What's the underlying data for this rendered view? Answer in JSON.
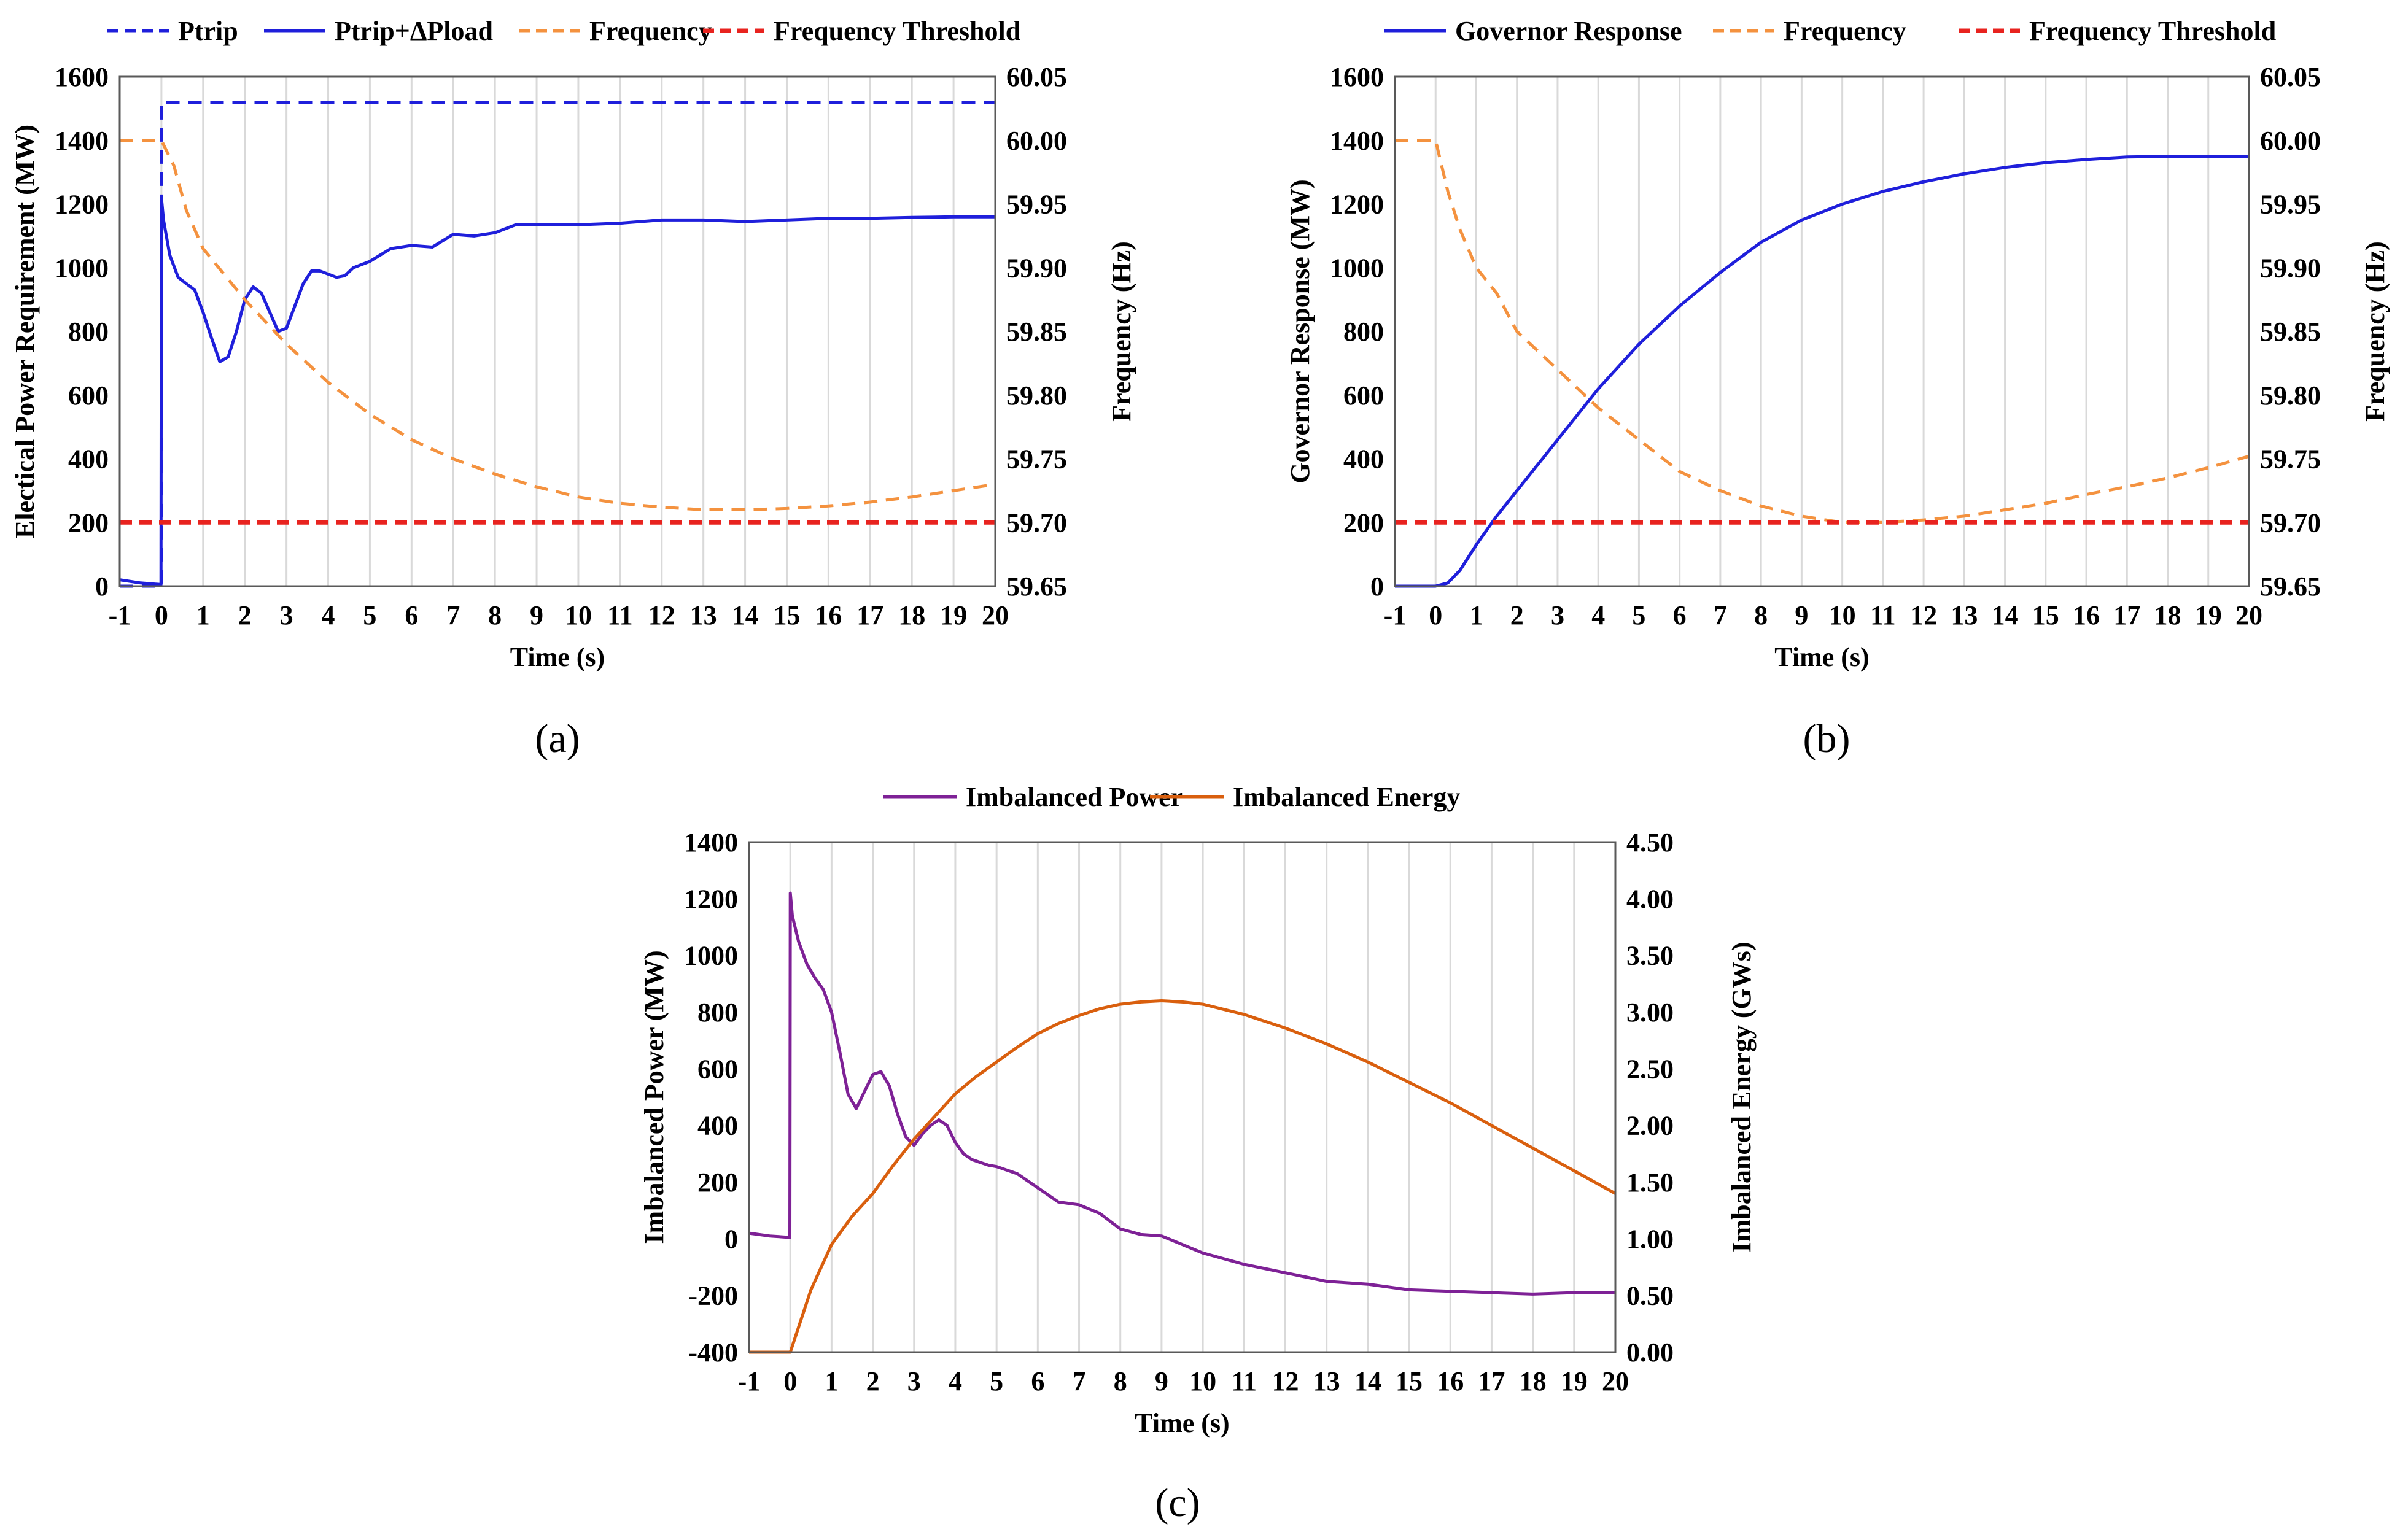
{
  "chart_data": [
    {
      "id": "a",
      "type": "line",
      "panel_label": "(a)",
      "xlabel": "Time (s)",
      "ylabel": "Electical Power Requirement (MW)",
      "y2label": "Frequency (Hz)",
      "xlim": [
        -1,
        20
      ],
      "ylim": [
        0,
        1600
      ],
      "y2lim": [
        59.65,
        60.05
      ],
      "x_ticks": [
        "-1",
        "0",
        "1",
        "2",
        "3",
        "4",
        "5",
        "6",
        "7",
        "8",
        "9",
        "10",
        "11",
        "12",
        "13",
        "14",
        "15",
        "16",
        "17",
        "18",
        "19",
        "20"
      ],
      "y_ticks": [
        "0",
        "200",
        "400",
        "600",
        "800",
        "1000",
        "1200",
        "1400",
        "1600"
      ],
      "y2_ticks": [
        "59.65",
        "59.70",
        "59.75",
        "59.80",
        "59.85",
        "59.90",
        "59.95",
        "60.00",
        "60.05"
      ],
      "grid": "vertical",
      "legend_position": "top",
      "series": [
        {
          "name": "Ptrip",
          "axis": "left",
          "color": "#1f1fdb",
          "dash": "dashed",
          "x": [
            -1,
            0,
            0,
            20
          ],
          "y": [
            0,
            0,
            1520,
            1520
          ]
        },
        {
          "name": "Ptrip+ΔPload",
          "axis": "left",
          "color": "#1f1fdb",
          "dash": "solid",
          "x": [
            -1,
            -0.5,
            -0.01,
            0.0,
            0.05,
            0.2,
            0.4,
            0.6,
            0.8,
            1.0,
            1.2,
            1.4,
            1.6,
            1.8,
            2.0,
            2.2,
            2.4,
            2.6,
            2.8,
            3.0,
            3.2,
            3.4,
            3.6,
            3.8,
            4.0,
            4.2,
            4.4,
            4.6,
            4.8,
            5.0,
            5.5,
            6.0,
            6.5,
            7.0,
            7.5,
            8.0,
            8.5,
            9.0,
            10.0,
            11.0,
            12.0,
            13.0,
            14.0,
            15.0,
            16.0,
            17.0,
            18.0,
            19.0,
            20.0
          ],
          "y": [
            20,
            10,
            5,
            1220,
            1150,
            1040,
            970,
            950,
            930,
            860,
            780,
            705,
            720,
            800,
            900,
            940,
            920,
            860,
            800,
            810,
            880,
            950,
            990,
            990,
            980,
            970,
            975,
            1000,
            1010,
            1020,
            1060,
            1070,
            1065,
            1105,
            1100,
            1110,
            1135,
            1135,
            1135,
            1140,
            1150,
            1150,
            1145,
            1150,
            1155,
            1155,
            1158,
            1160,
            1160
          ]
        },
        {
          "name": "Frequency",
          "axis": "right",
          "color": "#f4923f",
          "dash": "dashed",
          "x": [
            -1,
            -0.5,
            0,
            0.3,
            0.6,
            1,
            1.5,
            2,
            3,
            4,
            5,
            6,
            7,
            8,
            9,
            10,
            11,
            12,
            13,
            14,
            15,
            16,
            17,
            18,
            19,
            20
          ],
          "y": [
            60.0,
            60.0,
            60.0,
            59.98,
            59.945,
            59.915,
            59.895,
            59.875,
            59.84,
            59.81,
            59.785,
            59.765,
            59.75,
            59.738,
            59.728,
            59.72,
            59.715,
            59.712,
            59.71,
            59.71,
            59.711,
            59.713,
            59.716,
            59.72,
            59.725,
            59.73
          ]
        },
        {
          "name": "Frequency Threshold",
          "axis": "right",
          "color": "#e8231f",
          "dash": "dashed-thick",
          "x": [
            -1,
            20
          ],
          "y": [
            59.7,
            59.7
          ]
        }
      ]
    },
    {
      "id": "b",
      "type": "line",
      "panel_label": "(b)",
      "xlabel": "Time (s)",
      "ylabel": "Governor Response (MW)",
      "y2label": "Frequency (Hz)",
      "xlim": [
        -1,
        20
      ],
      "ylim": [
        0,
        1600
      ],
      "y2lim": [
        59.65,
        60.05
      ],
      "x_ticks": [
        "-1",
        "0",
        "1",
        "2",
        "3",
        "4",
        "5",
        "6",
        "7",
        "8",
        "9",
        "10",
        "11",
        "12",
        "13",
        "14",
        "15",
        "16",
        "17",
        "18",
        "19",
        "20"
      ],
      "y_ticks": [
        "0",
        "200",
        "400",
        "600",
        "800",
        "1000",
        "1200",
        "1400",
        "1600"
      ],
      "y2_ticks": [
        "59.65",
        "59.70",
        "59.75",
        "59.80",
        "59.85",
        "59.90",
        "59.95",
        "60.00",
        "60.05"
      ],
      "grid": "vertical",
      "legend_position": "top",
      "series": [
        {
          "name": "Governor Response",
          "axis": "left",
          "color": "#1f1fdb",
          "dash": "solid",
          "x": [
            -1,
            0,
            0.3,
            0.6,
            1.0,
            1.5,
            2,
            3,
            4,
            5,
            6,
            7,
            8,
            9,
            10,
            11,
            12,
            13,
            14,
            15,
            16,
            17,
            18,
            19,
            20
          ],
          "y": [
            0,
            0,
            10,
            50,
            130,
            220,
            300,
            460,
            620,
            760,
            880,
            985,
            1080,
            1150,
            1200,
            1240,
            1270,
            1295,
            1315,
            1330,
            1340,
            1348,
            1350,
            1350,
            1350
          ]
        },
        {
          "name": "Frequency",
          "axis": "right",
          "color": "#f4923f",
          "dash": "dashed",
          "x": [
            -1,
            -0.5,
            0,
            0.3,
            0.6,
            1.0,
            1.5,
            2,
            3,
            4,
            5,
            6,
            7,
            8,
            9,
            10,
            11,
            12,
            13,
            14,
            15,
            16,
            17,
            18,
            19,
            20
          ],
          "y": [
            60.0,
            60.0,
            60.0,
            59.96,
            59.93,
            59.9,
            59.88,
            59.85,
            59.82,
            59.79,
            59.765,
            59.74,
            59.725,
            59.713,
            59.705,
            59.7,
            59.7,
            59.702,
            59.705,
            59.71,
            59.715,
            59.722,
            59.728,
            59.735,
            59.743,
            59.752
          ]
        },
        {
          "name": "Frequency Threshold",
          "axis": "right",
          "color": "#e8231f",
          "dash": "dashed-thick",
          "x": [
            -1,
            20
          ],
          "y": [
            59.7,
            59.7
          ]
        }
      ]
    },
    {
      "id": "c",
      "type": "line",
      "panel_label": "(c)",
      "xlabel": "Time (s)",
      "ylabel": "Imbalanced Power  (MW)",
      "y2label": "Imbalanced Energy (GWs)",
      "xlim": [
        -1,
        20
      ],
      "ylim": [
        -400,
        1400
      ],
      "y2lim": [
        0,
        4.5
      ],
      "x_ticks": [
        "-1",
        "0",
        "1",
        "2",
        "3",
        "4",
        "5",
        "6",
        "7",
        "8",
        "9",
        "10",
        "11",
        "12",
        "13",
        "14",
        "15",
        "16",
        "17",
        "18",
        "19",
        "20"
      ],
      "y_ticks": [
        "-400",
        "-200",
        "0",
        "200",
        "400",
        "600",
        "800",
        "1000",
        "1200",
        "1400"
      ],
      "y2_ticks": [
        "0.00",
        "0.50",
        "1.00",
        "1.50",
        "2.00",
        "2.50",
        "3.00",
        "3.50",
        "4.00",
        "4.50"
      ],
      "grid": "vertical",
      "legend_position": "top",
      "series": [
        {
          "name": "Imbalanced Power",
          "axis": "left",
          "color": "#7e2196",
          "dash": "solid",
          "x": [
            -1,
            -0.5,
            -0.01,
            0.0,
            0.05,
            0.2,
            0.4,
            0.6,
            0.8,
            1.0,
            1.2,
            1.4,
            1.6,
            1.8,
            2.0,
            2.2,
            2.4,
            2.6,
            2.8,
            3.0,
            3.2,
            3.4,
            3.6,
            3.8,
            4.0,
            4.2,
            4.4,
            4.6,
            4.8,
            5.0,
            5.5,
            6.0,
            6.5,
            7.0,
            7.5,
            8.0,
            8.5,
            9.0,
            10.0,
            11.0,
            12.0,
            13.0,
            14.0,
            15.0,
            16.0,
            17.0,
            18.0,
            19.0,
            20.0
          ],
          "y": [
            20,
            10,
            5,
            1220,
            1140,
            1050,
            970,
            920,
            880,
            800,
            660,
            510,
            460,
            520,
            580,
            590,
            540,
            440,
            360,
            330,
            370,
            400,
            420,
            400,
            340,
            300,
            280,
            270,
            260,
            255,
            230,
            180,
            130,
            120,
            90,
            35,
            15,
            10,
            -50,
            -90,
            -120,
            -150,
            -160,
            -180,
            -185,
            -190,
            -195,
            -190,
            -190
          ]
        },
        {
          "name": "Imbalanced Energy",
          "axis": "right",
          "color": "#d95f0e",
          "dash": "solid",
          "x": [
            -1,
            0,
            0.5,
            1,
            1.5,
            2,
            2.5,
            3,
            3.5,
            4,
            4.5,
            5,
            5.5,
            6,
            6.5,
            7,
            7.5,
            8,
            8.5,
            9,
            9.5,
            10,
            11,
            12,
            13,
            14,
            15,
            16,
            17,
            18,
            19,
            20
          ],
          "y": [
            0,
            0,
            0.55,
            0.95,
            1.2,
            1.4,
            1.65,
            1.88,
            2.08,
            2.28,
            2.43,
            2.56,
            2.69,
            2.81,
            2.9,
            2.97,
            3.03,
            3.07,
            3.09,
            3.1,
            3.09,
            3.07,
            2.98,
            2.86,
            2.72,
            2.56,
            2.38,
            2.2,
            2.0,
            1.8,
            1.6,
            1.4
          ]
        }
      ]
    }
  ]
}
